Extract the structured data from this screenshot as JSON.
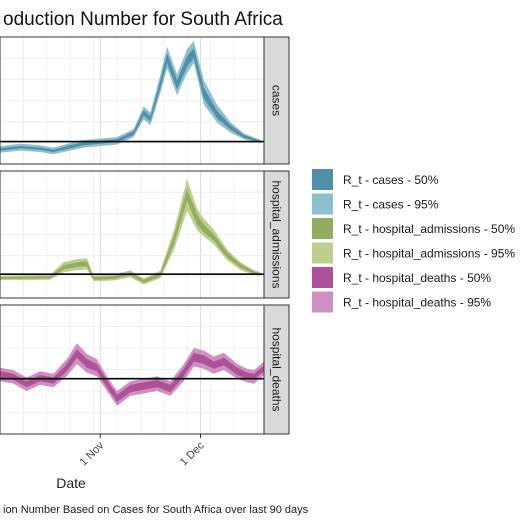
{
  "chart_data": {
    "type": "area",
    "title": "oduction Number for South Africa",
    "caption": "ion Number Based on Cases for South Africa over last 90 days",
    "xlabel": "Date",
    "x_ticks": [
      "1 Nov",
      "1 Dec"
    ],
    "x_range": [
      "2021-10-02",
      "2021-12-20"
    ],
    "reference_line": 1.0,
    "grid": true,
    "legend_position": "right",
    "legend": [
      {
        "label": "R_t - cases - 50%",
        "color": "#4f8fa8"
      },
      {
        "label": "R_t - cases - 95%",
        "color": "#8ebfcf"
      },
      {
        "label": "R_t - hospital_admissions - 50%",
        "color": "#94ac5e"
      },
      {
        "label": "R_t - hospital_admissions - 95%",
        "color": "#bccf8f"
      },
      {
        "label": "R_t - hospital_deaths - 50%",
        "color": "#ad5298"
      },
      {
        "label": "R_t - hospital_deaths - 95%",
        "color": "#cf8fbf"
      }
    ],
    "panels": [
      {
        "strip": "cases",
        "ylim": [
          0.7,
          2.4
        ],
        "color50": "#4f8fa8",
        "color95": "#8ebfcf",
        "series": [
          {
            "date": "2021-10-02",
            "lo95": 0.85,
            "lo50": 0.88,
            "hi50": 0.91,
            "hi95": 0.94
          },
          {
            "date": "2021-10-08",
            "lo95": 0.88,
            "lo50": 0.91,
            "hi50": 0.94,
            "hi95": 0.97
          },
          {
            "date": "2021-10-14",
            "lo95": 0.86,
            "lo50": 0.89,
            "hi50": 0.92,
            "hi95": 0.95
          },
          {
            "date": "2021-10-18",
            "lo95": 0.83,
            "lo50": 0.86,
            "hi50": 0.89,
            "hi95": 0.92
          },
          {
            "date": "2021-10-23",
            "lo95": 0.88,
            "lo50": 0.91,
            "hi50": 0.95,
            "hi95": 0.98
          },
          {
            "date": "2021-10-27",
            "lo95": 0.92,
            "lo50": 0.95,
            "hi50": 0.99,
            "hi95": 1.02
          },
          {
            "date": "2021-11-01",
            "lo95": 0.94,
            "lo50": 0.97,
            "hi50": 1.01,
            "hi95": 1.04
          },
          {
            "date": "2021-11-06",
            "lo95": 0.96,
            "lo50": 0.99,
            "hi50": 1.03,
            "hi95": 1.06
          },
          {
            "date": "2021-11-11",
            "lo95": 1.06,
            "lo50": 1.09,
            "hi50": 1.14,
            "hi95": 1.17
          },
          {
            "date": "2021-11-14",
            "lo95": 1.3,
            "lo50": 1.35,
            "hi50": 1.42,
            "hi95": 1.47
          },
          {
            "date": "2021-11-16",
            "lo95": 1.22,
            "lo50": 1.27,
            "hi50": 1.34,
            "hi95": 1.39
          },
          {
            "date": "2021-11-19",
            "lo95": 1.65,
            "lo50": 1.72,
            "hi50": 1.82,
            "hi95": 1.9
          },
          {
            "date": "2021-11-21",
            "lo95": 1.98,
            "lo50": 2.05,
            "hi50": 2.18,
            "hi95": 2.27
          },
          {
            "date": "2021-11-24",
            "lo95": 1.62,
            "lo50": 1.7,
            "hi50": 1.82,
            "hi95": 1.9
          },
          {
            "date": "2021-11-27",
            "lo95": 1.92,
            "lo50": 2.0,
            "hi50": 2.14,
            "hi95": 2.24
          },
          {
            "date": "2021-11-29",
            "lo95": 2.05,
            "lo50": 2.12,
            "hi50": 2.25,
            "hi95": 2.35
          },
          {
            "date": "2021-12-02",
            "lo95": 1.5,
            "lo50": 1.58,
            "hi50": 1.72,
            "hi95": 1.82
          },
          {
            "date": "2021-12-06",
            "lo95": 1.25,
            "lo50": 1.31,
            "hi50": 1.41,
            "hi95": 1.49
          },
          {
            "date": "2021-12-10",
            "lo95": 1.12,
            "lo50": 1.16,
            "hi50": 1.22,
            "hi95": 1.26
          },
          {
            "date": "2021-12-14",
            "lo95": 1.03,
            "lo50": 1.05,
            "hi50": 1.09,
            "hi95": 1.11
          },
          {
            "date": "2021-12-19",
            "lo95": 0.98,
            "lo50": 0.99,
            "hi50": 1.01,
            "hi95": 1.02
          }
        ]
      },
      {
        "strip": "hospital_admissions",
        "ylim": [
          0.4,
          3.6
        ],
        "color50": "#94ac5e",
        "color95": "#bccf8f",
        "series": [
          {
            "date": "2021-10-02",
            "lo95": 0.85,
            "lo50": 0.88,
            "hi50": 0.93,
            "hi95": 0.96
          },
          {
            "date": "2021-10-10",
            "lo95": 0.85,
            "lo50": 0.89,
            "hi50": 0.94,
            "hi95": 0.98
          },
          {
            "date": "2021-10-17",
            "lo95": 0.86,
            "lo50": 0.9,
            "hi50": 0.95,
            "hi95": 0.99
          },
          {
            "date": "2021-10-21",
            "lo95": 1.05,
            "lo50": 1.12,
            "hi50": 1.22,
            "hi95": 1.3
          },
          {
            "date": "2021-10-25",
            "lo95": 1.1,
            "lo50": 1.18,
            "hi50": 1.3,
            "hi95": 1.38
          },
          {
            "date": "2021-10-28",
            "lo95": 1.12,
            "lo50": 1.2,
            "hi50": 1.32,
            "hi95": 1.4
          },
          {
            "date": "2021-10-30",
            "lo95": 0.82,
            "lo50": 0.86,
            "hi50": 0.93,
            "hi95": 0.97
          },
          {
            "date": "2021-11-05",
            "lo95": 0.84,
            "lo50": 0.88,
            "hi50": 0.95,
            "hi95": 0.99
          },
          {
            "date": "2021-11-10",
            "lo95": 0.92,
            "lo50": 0.97,
            "hi50": 1.05,
            "hi95": 1.1
          },
          {
            "date": "2021-11-14",
            "lo95": 0.74,
            "lo50": 0.78,
            "hi50": 0.86,
            "hi95": 0.9
          },
          {
            "date": "2021-11-19",
            "lo95": 0.9,
            "lo50": 0.95,
            "hi50": 1.04,
            "hi95": 1.09
          },
          {
            "date": "2021-11-23",
            "lo95": 1.6,
            "lo50": 1.75,
            "hi50": 1.95,
            "hi95": 2.1
          },
          {
            "date": "2021-11-27",
            "lo95": 2.6,
            "lo50": 2.85,
            "hi50": 3.15,
            "hi95": 3.4
          },
          {
            "date": "2021-11-30",
            "lo95": 2.1,
            "lo50": 2.25,
            "hi50": 2.5,
            "hi95": 2.65
          },
          {
            "date": "2021-12-02",
            "lo95": 1.95,
            "lo50": 2.05,
            "hi50": 2.25,
            "hi95": 2.4
          },
          {
            "date": "2021-12-05",
            "lo95": 1.75,
            "lo50": 1.85,
            "hi50": 2.0,
            "hi95": 2.12
          },
          {
            "date": "2021-12-09",
            "lo95": 1.35,
            "lo50": 1.42,
            "hi50": 1.55,
            "hi95": 1.62
          },
          {
            "date": "2021-12-13",
            "lo95": 1.1,
            "lo50": 1.16,
            "hi50": 1.25,
            "hi95": 1.3
          },
          {
            "date": "2021-12-17",
            "lo95": 0.98,
            "lo50": 1.01,
            "hi50": 1.07,
            "hi95": 1.1
          },
          {
            "date": "2021-12-19",
            "lo95": 0.96,
            "lo50": 0.98,
            "hi50": 1.02,
            "hi95": 1.05
          }
        ]
      },
      {
        "strip": "hospital_deaths",
        "ylim": [
          0.55,
          1.6
        ],
        "color50": "#ad5298",
        "color95": "#cf8fbf",
        "series": [
          {
            "date": "2021-10-02",
            "lo95": 0.98,
            "lo50": 1.01,
            "hi50": 1.06,
            "hi95": 1.09
          },
          {
            "date": "2021-10-06",
            "lo95": 0.96,
            "lo50": 0.99,
            "hi50": 1.04,
            "hi95": 1.07
          },
          {
            "date": "2021-10-10",
            "lo95": 0.9,
            "lo50": 0.93,
            "hi50": 0.98,
            "hi95": 1.01
          },
          {
            "date": "2021-10-14",
            "lo95": 0.95,
            "lo50": 0.98,
            "hi50": 1.03,
            "hi95": 1.06
          },
          {
            "date": "2021-10-18",
            "lo95": 0.93,
            "lo50": 0.96,
            "hi50": 1.01,
            "hi95": 1.04
          },
          {
            "date": "2021-10-22",
            "lo95": 1.02,
            "lo50": 1.06,
            "hi50": 1.12,
            "hi95": 1.16
          },
          {
            "date": "2021-10-25",
            "lo95": 1.12,
            "lo50": 1.17,
            "hi50": 1.24,
            "hi95": 1.29
          },
          {
            "date": "2021-10-28",
            "lo95": 1.05,
            "lo50": 1.09,
            "hi50": 1.16,
            "hi95": 1.2
          },
          {
            "date": "2021-10-31",
            "lo95": 1.02,
            "lo50": 1.06,
            "hi50": 1.12,
            "hi95": 1.16
          },
          {
            "date": "2021-11-03",
            "lo95": 0.9,
            "lo50": 0.93,
            "hi50": 0.99,
            "hi95": 1.02
          },
          {
            "date": "2021-11-06",
            "lo95": 0.78,
            "lo50": 0.81,
            "hi50": 0.87,
            "hi95": 0.9
          },
          {
            "date": "2021-11-10",
            "lo95": 0.86,
            "lo50": 0.89,
            "hi50": 0.95,
            "hi95": 0.98
          },
          {
            "date": "2021-11-14",
            "lo95": 0.88,
            "lo50": 0.91,
            "hi50": 0.97,
            "hi95": 1.0
          },
          {
            "date": "2021-11-18",
            "lo95": 0.9,
            "lo50": 0.93,
            "hi50": 0.99,
            "hi95": 1.02
          },
          {
            "date": "2021-11-22",
            "lo95": 0.86,
            "lo50": 0.89,
            "hi50": 0.95,
            "hi95": 0.98
          },
          {
            "date": "2021-11-26",
            "lo95": 0.98,
            "lo50": 1.02,
            "hi50": 1.08,
            "hi95": 1.12
          },
          {
            "date": "2021-11-29",
            "lo95": 1.1,
            "lo50": 1.14,
            "hi50": 1.21,
            "hi95": 1.25
          },
          {
            "date": "2021-12-02",
            "lo95": 1.08,
            "lo50": 1.12,
            "hi50": 1.19,
            "hi95": 1.23
          },
          {
            "date": "2021-12-05",
            "lo95": 1.04,
            "lo50": 1.08,
            "hi50": 1.14,
            "hi95": 1.18
          },
          {
            "date": "2021-12-08",
            "lo95": 1.07,
            "lo50": 1.11,
            "hi50": 1.17,
            "hi95": 1.21
          },
          {
            "date": "2021-12-12",
            "lo95": 1.0,
            "lo50": 1.03,
            "hi50": 1.09,
            "hi95": 1.12
          },
          {
            "date": "2021-12-15",
            "lo95": 0.97,
            "lo50": 1.0,
            "hi50": 1.05,
            "hi95": 1.08
          },
          {
            "date": "2021-12-17",
            "lo95": 0.96,
            "lo50": 0.99,
            "hi50": 1.04,
            "hi95": 1.07
          },
          {
            "date": "2021-12-20",
            "lo95": 1.03,
            "lo50": 1.06,
            "hi50": 1.11,
            "hi95": 1.14
          }
        ]
      }
    ]
  }
}
